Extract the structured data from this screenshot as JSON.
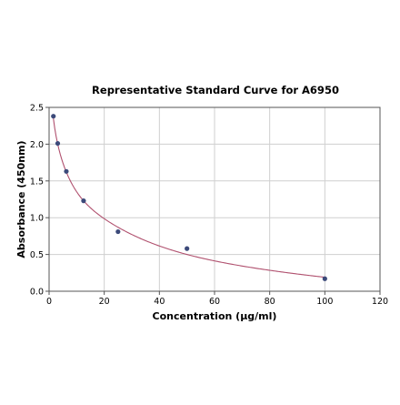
{
  "chart_data": {
    "type": "scatter",
    "title": "Representative Standard Curve for A6950",
    "xlabel": "Concentration (μg/ml)",
    "ylabel": "Absorbance (450nm)",
    "xlim": [
      0,
      120
    ],
    "ylim": [
      0,
      2.5
    ],
    "x_ticks": [
      "0",
      "20",
      "40",
      "60",
      "80",
      "100",
      "120"
    ],
    "y_ticks": [
      "0.0",
      "0.5",
      "1.0",
      "1.5",
      "2.0",
      "2.5"
    ],
    "grid": true,
    "legend": "none",
    "series": [
      {
        "kind": "points",
        "color": "#3c4a7a",
        "x": [
          1.56,
          3.13,
          6.25,
          12.5,
          25,
          50,
          100
        ],
        "y": [
          2.38,
          2.01,
          1.63,
          1.23,
          0.81,
          0.58,
          0.17
        ]
      },
      {
        "kind": "fitted-curve",
        "color": "#b0506e",
        "x": [
          1.56,
          3.13,
          6.25,
          12.5,
          25,
          50,
          100
        ],
        "y": [
          2.35,
          2.0,
          1.62,
          1.23,
          0.87,
          0.5,
          0.19
        ]
      }
    ]
  }
}
